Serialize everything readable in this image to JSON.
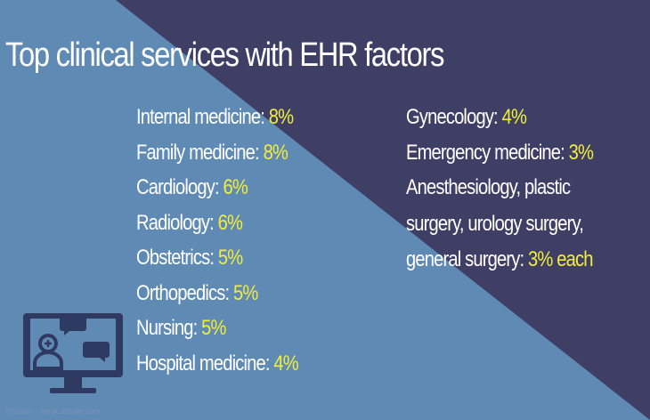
{
  "title": "Top clinical services with EHR factors",
  "left_column": [
    {
      "label": "Internal medicine: ",
      "value": "8%"
    },
    {
      "label": "Family medicine: ",
      "value": "8%"
    },
    {
      "label": "Cardiology: ",
      "value": "6%"
    },
    {
      "label": "Radiology: ",
      "value": "6%"
    },
    {
      "label": "Obstetrics: ",
      "value": "5%"
    },
    {
      "label": "Orthopedics: ",
      "value": "5%"
    },
    {
      "label": "Nursing: ",
      "value": "5%"
    },
    {
      "label": "Hospital medicine: ",
      "value": "4%"
    }
  ],
  "right_column": [
    {
      "label": "Gynecology: ",
      "value": "4%"
    },
    {
      "label": "Emergency medicine: ",
      "value": "3%"
    }
  ],
  "combined_item": {
    "line1": "Anesthesiology, plastic",
    "line2": "surgery, urology surgery,",
    "line3_label": "general surgery: ",
    "value": "3% each"
  },
  "credit": "©sizsus - stock.adobe.com",
  "colors": {
    "background_dark": "#3f3f66",
    "background_light": "#5f8ab4",
    "text": "#ffffff",
    "highlight": "#f2ee3c",
    "icon": "#2f3a63"
  },
  "icon": "computer-monitor-telehealth-icon"
}
